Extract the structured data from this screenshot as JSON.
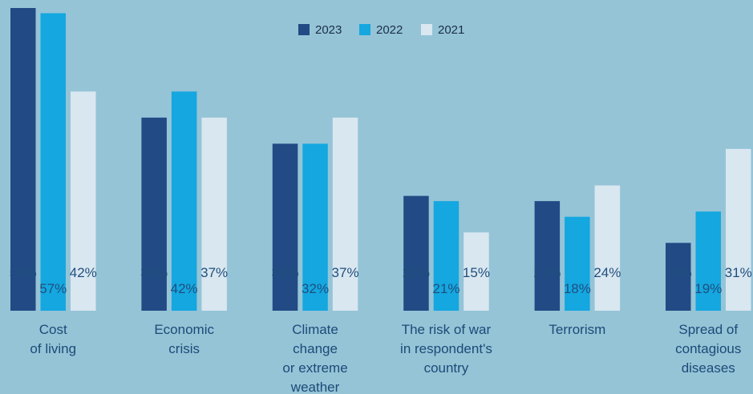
{
  "chart_data": {
    "type": "bar",
    "categories": [
      [
        "Cost",
        "of living"
      ],
      [
        "Economic",
        "crisis"
      ],
      [
        "Climate",
        "change",
        "or extreme",
        "weather"
      ],
      [
        "The risk of war",
        "in respondent's",
        "country"
      ],
      [
        "Terrorism"
      ],
      [
        "Spread of",
        "contagious",
        "diseases"
      ]
    ],
    "series": [
      {
        "name": "2023",
        "color": "#224a84",
        "values": [
          58,
          37,
          32,
          22,
          21,
          13
        ],
        "labels": [
          "58%",
          "37%",
          "32%",
          "22%",
          "21%",
          "13%"
        ]
      },
      {
        "name": "2022",
        "color": "#14a7e0",
        "values": [
          57,
          42,
          32,
          21,
          18,
          19
        ],
        "labels": [
          "57%",
          "42%",
          "32%",
          "21%",
          "18%",
          "19%"
        ]
      },
      {
        "name": "2021",
        "color": "#d9e7f0",
        "values": [
          42,
          37,
          37,
          15,
          24,
          31
        ],
        "labels": [
          "42%",
          "37%",
          "37%",
          "15%",
          "24%",
          "31%"
        ]
      }
    ],
    "ylim": [
      0,
      58
    ],
    "legend_position": "top-center",
    "grid": false,
    "label_color": "#1f4f7e",
    "category_label_color": "#1c4a78"
  }
}
